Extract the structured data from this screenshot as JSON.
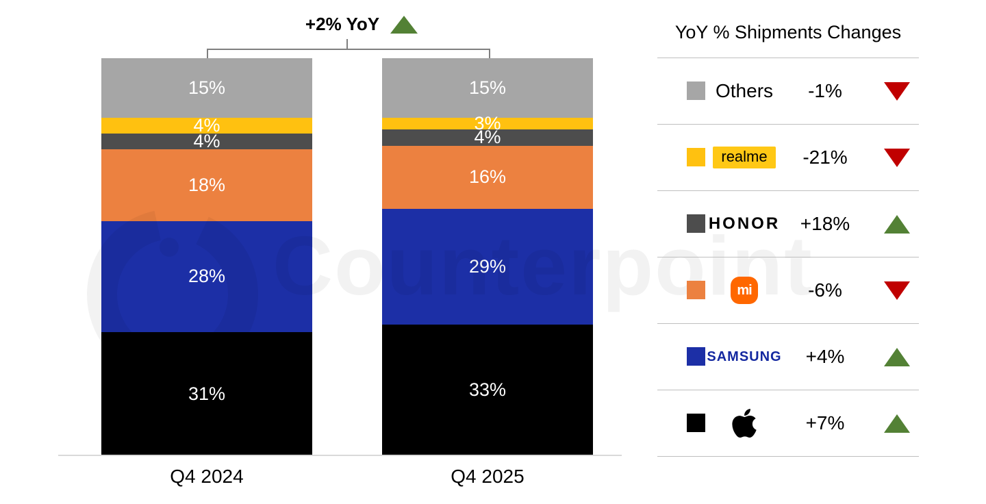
{
  "watermark": {
    "text": "Counterpoint"
  },
  "annotation": {
    "label": "+2% YoY",
    "direction": "up"
  },
  "chart_data": {
    "type": "bar",
    "stacked": true,
    "categories": [
      "Q4 2024",
      "Q4 2025"
    ],
    "series": [
      {
        "name": "Apple",
        "color": "#000000",
        "values": [
          31,
          33
        ]
      },
      {
        "name": "Samsung",
        "color": "#1c2fa6",
        "values": [
          28,
          29
        ]
      },
      {
        "name": "Xiaomi",
        "color": "#ec8140",
        "values": [
          18,
          16
        ]
      },
      {
        "name": "HONOR",
        "color": "#4d4d4d",
        "values": [
          4,
          4
        ]
      },
      {
        "name": "realme",
        "color": "#ffc110",
        "values": [
          4,
          3
        ]
      },
      {
        "name": "Others",
        "color": "#a6a6a6",
        "values": [
          15,
          15
        ]
      }
    ],
    "unit": "%",
    "ylim": [
      0,
      100
    ],
    "annotation": "+2% YoY",
    "legend_position": "right",
    "grid": false
  },
  "legend": {
    "title": "YoY % Shipments Changes",
    "rows": [
      {
        "brand": "Others",
        "change": "-1%",
        "direction": "down",
        "swatch": "#a6a6a6"
      },
      {
        "brand": "realme",
        "change": "-21%",
        "direction": "down",
        "swatch": "#ffc110"
      },
      {
        "brand": "HONOR",
        "change": "+18%",
        "direction": "up",
        "swatch": "#4d4d4d"
      },
      {
        "brand": "Xiaomi",
        "change": "-6%",
        "direction": "down",
        "swatch": "#ec8140",
        "logo_text": "mi"
      },
      {
        "brand": "SAMSUNG",
        "change": "+4%",
        "direction": "up",
        "swatch": "#1c2fa6"
      },
      {
        "brand": "Apple",
        "change": "+7%",
        "direction": "up",
        "swatch": "#000000"
      }
    ]
  },
  "colors": {
    "up": "#538135",
    "down": "#c00000",
    "axis": "#d9d9d9",
    "separator": "#bfbfbf"
  }
}
